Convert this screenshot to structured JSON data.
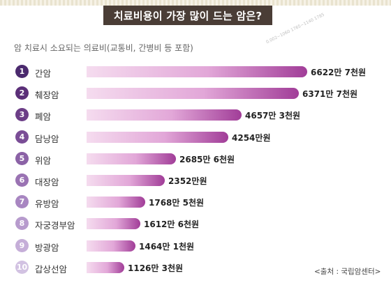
{
  "header": {
    "title": "치료비용이 가장 많이 드는 암은?"
  },
  "subtitle": "암 치료시 소요되는 의료비(교통비, 간병비 등 포함)",
  "watermark": "0.002~1060 1765~1140 1785",
  "source": "<출처 : 국립암센터>",
  "colors": {
    "bar_strong": "#a13d98",
    "bar_light": "#f5dcef",
    "title_bg": "#4a3d36"
  },
  "chart_data": {
    "type": "bar",
    "orientation": "horizontal",
    "title": "치료비용이 가장 많이 드는 암은?",
    "subtitle": "암 치료시 소요되는 의료비(교통비, 간병비 등 포함)",
    "ranks": [
      "1",
      "2",
      "3",
      "4",
      "5",
      "6",
      "7",
      "8",
      "9",
      "10"
    ],
    "categories": [
      "간암",
      "췌장암",
      "폐암",
      "담낭암",
      "위암",
      "대장암",
      "유방암",
      "자궁경부암",
      "방광암",
      "갑상선암"
    ],
    "values": [
      66227000,
      63717000,
      46573000,
      42540000,
      26856000,
      23520000,
      17685000,
      16126000,
      14641000,
      11263000
    ],
    "value_labels": [
      "6622만 7천원",
      "6371만 7천원",
      "4657만 3천원",
      "4254만원",
      "2685만 6천원",
      "2352만원",
      "1768만 5천원",
      "1612만 6천원",
      "1464만 1천원",
      "1126만 3천원"
    ],
    "unit": "원",
    "xlim": [
      0,
      70000000
    ],
    "grid": false,
    "legend": "none"
  }
}
